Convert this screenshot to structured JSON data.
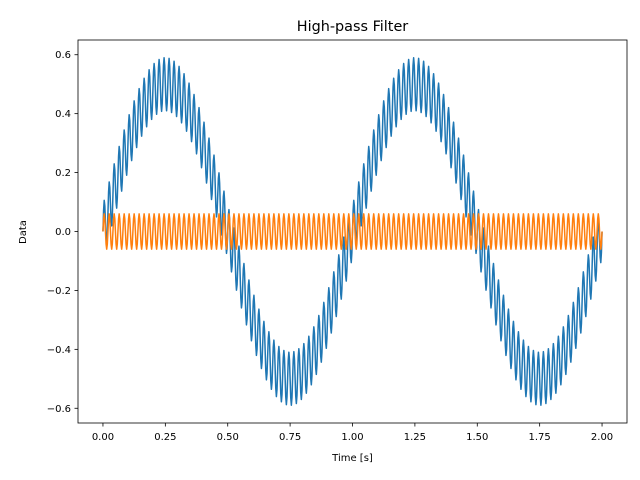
{
  "chart_data": {
    "type": "line",
    "title": "High-pass Filter",
    "xlabel": "Time [s]",
    "ylabel": "Data",
    "xlim": [
      -0.1,
      2.1
    ],
    "ylim": [
      -0.65,
      0.65
    ],
    "xticks": [
      0.0,
      0.25,
      0.5,
      0.75,
      1.0,
      1.25,
      1.5,
      1.75,
      2.0
    ],
    "xtick_labels": [
      "0.00",
      "0.25",
      "0.50",
      "0.75",
      "1.00",
      "1.25",
      "1.50",
      "1.75",
      "2.00"
    ],
    "yticks": [
      -0.6,
      -0.4,
      -0.2,
      0.0,
      0.2,
      0.4,
      0.6
    ],
    "ytick_labels": [
      "−0.6",
      "−0.4",
      "−0.2",
      "0.0",
      "0.2",
      "0.4",
      "0.6"
    ],
    "grid": false,
    "series": [
      {
        "color": "#1f77b4",
        "description": "Original signal: 1 Hz sine, amplitude ~0.5, plus ~0.09 amplitude high-frequency ripple (~50 Hz)",
        "x_range": [
          0,
          2
        ],
        "components": [
          {
            "amplitude": 0.5,
            "frequency_hz": 1
          },
          {
            "amplitude": 0.09,
            "frequency_hz": 50
          }
        ]
      },
      {
        "color": "#ff7f0e",
        "description": "High-pass filtered signal: residual ripple around 0 with amplitude ~0.06",
        "x_range": [
          0,
          2
        ],
        "components": [
          {
            "amplitude": 0.06,
            "frequency_hz": 50
          }
        ]
      }
    ]
  }
}
